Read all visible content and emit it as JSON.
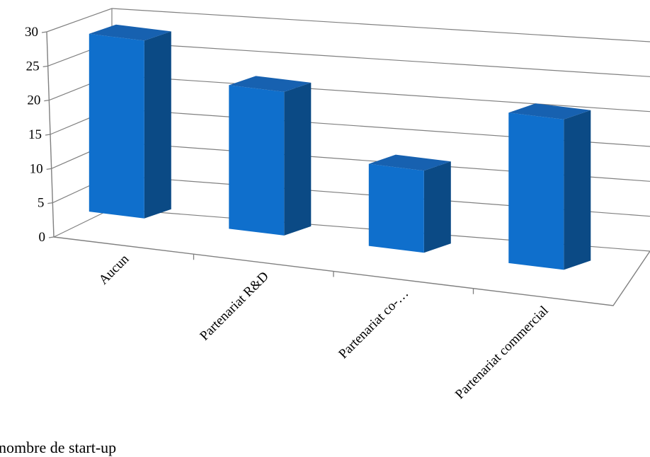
{
  "chart_data": {
    "type": "bar",
    "title": "",
    "xlabel": "",
    "ylabel": "",
    "categories": [
      "Aucun",
      "Partenariat R&D",
      "Partenariat co-…",
      "Partenariat commercial"
    ],
    "series": [
      {
        "name": "nombre de start-up",
        "values": [
          26,
          21,
          12,
          22
        ]
      }
    ],
    "ylim": [
      0,
      30
    ],
    "yticks": [
      "0",
      "5",
      "10",
      "15",
      "20",
      "25",
      "30"
    ],
    "grid": true,
    "legend": "bottom-left",
    "colors": {
      "bar_front": "#0F6FCC",
      "bar_side": "#0B4A85",
      "bar_top": "#1761B0",
      "gridline": "#808080",
      "axis": "#808080"
    }
  }
}
